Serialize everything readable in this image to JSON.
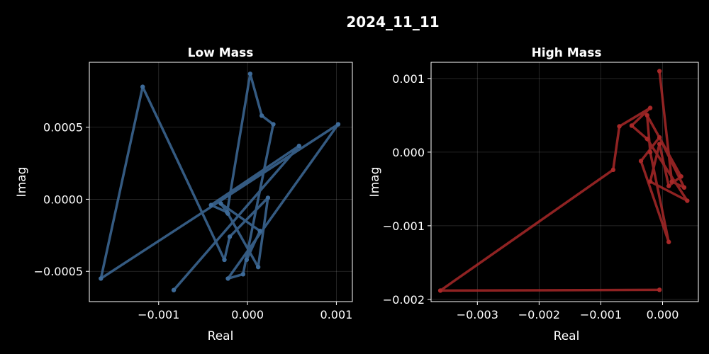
{
  "figure": {
    "title": "2024_11_11"
  },
  "chart_data": [
    {
      "type": "line",
      "title": "Low Mass",
      "xlabel": "Real",
      "ylabel": "Imag",
      "xlim": [
        -0.00178,
        0.00118
      ],
      "ylim": [
        -0.00071,
        0.00095
      ],
      "xticks": [
        -0.001,
        0.0,
        0.001
      ],
      "xtick_labels": [
        "−0.001",
        "0.000",
        "0.001"
      ],
      "yticks": [
        -0.0005,
        0.0,
        0.0005
      ],
      "ytick_labels": [
        "−0.0005",
        "0.0000",
        "0.0005"
      ],
      "grid": true,
      "color": "#3d6a98",
      "series": [
        {
          "x": [
            -0.00083,
            0.00058,
            -0.00041,
            -0.00023,
            3e-05,
            0.00016,
            0.00029,
            -5e-05,
            -0.00022,
            0.00102,
            -0.00165,
            -0.00118,
            -0.00026,
            -0.0002,
            0.00023,
            0.00012,
            -0.00022,
            -0.0003,
            0.00014,
            -1e-05
          ],
          "y": [
            -0.00063,
            0.00037,
            -4e-05,
            -9e-05,
            0.00087,
            0.00058,
            0.00052,
            -0.00052,
            -0.00055,
            0.00052,
            -0.00055,
            0.00078,
            -0.00042,
            -0.00026,
            1e-05,
            -0.00047,
            -0.0001,
            -3e-05,
            -0.00022,
            -0.00042
          ]
        }
      ]
    },
    {
      "type": "line",
      "title": "High Mass",
      "xlabel": "Real",
      "ylabel": "Imag",
      "xlim": [
        -0.00375,
        0.00058
      ],
      "ylim": [
        -0.00203,
        0.00122
      ],
      "xticks": [
        -0.003,
        -0.002,
        -0.001,
        0.0
      ],
      "xtick_labels": [
        "−0.003",
        "−0.002",
        "−0.001",
        "0.000"
      ],
      "yticks": [
        -0.002,
        -0.001,
        0.0,
        0.001
      ],
      "ytick_labels": [
        "−0.002",
        "−0.001",
        "0.000",
        "0.001"
      ],
      "grid": true,
      "color": "#a82828",
      "series": [
        {
          "x": [
            -5e-05,
            -0.0036,
            -0.0008,
            -0.0007,
            -0.0002,
            -0.0005,
            -0.00025,
            0.0004,
            -0.0002,
            -5e-05,
            0.0001,
            0.0003,
            -0.00025,
            -0.0002,
            0.0001,
            -0.00035,
            -5e-05,
            0.00035,
            0.00015,
            -5e-05
          ],
          "y": [
            -0.00187,
            -0.00188,
            -0.00024,
            0.00035,
            0.0006,
            0.00036,
            0.00018,
            -0.00066,
            -0.0004,
            0.00011,
            -0.00046,
            -0.00033,
            0.0005,
            0.0,
            -0.00122,
            -0.00012,
            0.0002,
            -0.00048,
            -0.0004,
            0.0011
          ]
        }
      ]
    }
  ]
}
